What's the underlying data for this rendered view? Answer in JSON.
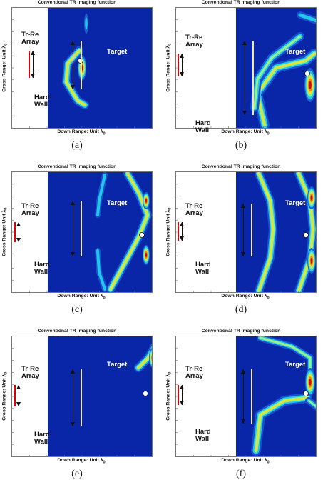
{
  "figure": {
    "panels": [
      {
        "id": "a",
        "title": "Conventional TR imaging function",
        "ylabel": "Cross Range: Unit λ",
        "ylabel_sub": "0",
        "xlabel": "Down Range: Unit λ",
        "xlabel_sub": "0",
        "caption": "(a)",
        "labels": {
          "array": "Tr-Re\nArray",
          "wall": "Hard\nWall",
          "target": "Target"
        }
      },
      {
        "id": "b",
        "title": "Conventional TR imaging function",
        "ylabel": "Cross Range: Unit λ",
        "ylabel_sub": "0",
        "xlabel": "Down Range: Unit λ",
        "xlabel_sub": "0",
        "caption": "(b)",
        "labels": {
          "array": "Tr-Re\nArray",
          "wall": "Hard\nWall",
          "target": "Target"
        }
      },
      {
        "id": "c",
        "title": "Conventional TR imaging function",
        "ylabel": "Cross Range: Unit λ",
        "ylabel_sub": "0",
        "xlabel": "Down Range: Unit λ",
        "xlabel_sub": "0",
        "caption": "(c)",
        "labels": {
          "array": "Tr-Re\nArray",
          "wall": "Hard\nWall",
          "target": "Target"
        }
      },
      {
        "id": "d",
        "title": "Conventional TR imaging function",
        "ylabel": "Cross Range: Unit λ",
        "ylabel_sub": "0",
        "xlabel": "Down Range: Unit λ",
        "xlabel_sub": "0",
        "caption": "(d)",
        "labels": {
          "array": "Tr-Re\nArray",
          "wall": "Hard\nWall",
          "target": "Target"
        }
      },
      {
        "id": "e",
        "title": "Conventional TR imaging function",
        "ylabel": "Cross Range: Unit λ",
        "ylabel_sub": "0",
        "xlabel": "Down Range: Unit λ",
        "xlabel_sub": "0",
        "caption": "(e)",
        "labels": {
          "array": "Tr-Re\nArray",
          "wall": "Hard\nWall",
          "target": "Target"
        }
      },
      {
        "id": "f",
        "title": "Conventional TR imaging function",
        "ylabel": "Cross Range: Unit λ",
        "ylabel_sub": "0",
        "xlabel": "Down Range: Unit λ",
        "xlabel_sub": "0",
        "caption": "(f)",
        "labels": {
          "array": "Tr-Re\nArray",
          "wall": "Hard\nWall",
          "target": "Target"
        }
      }
    ],
    "colormap": {
      "low": "#0a26a8",
      "mid": "#22c8e8",
      "high": "#f0e020",
      "peak": "#c01010"
    }
  }
}
